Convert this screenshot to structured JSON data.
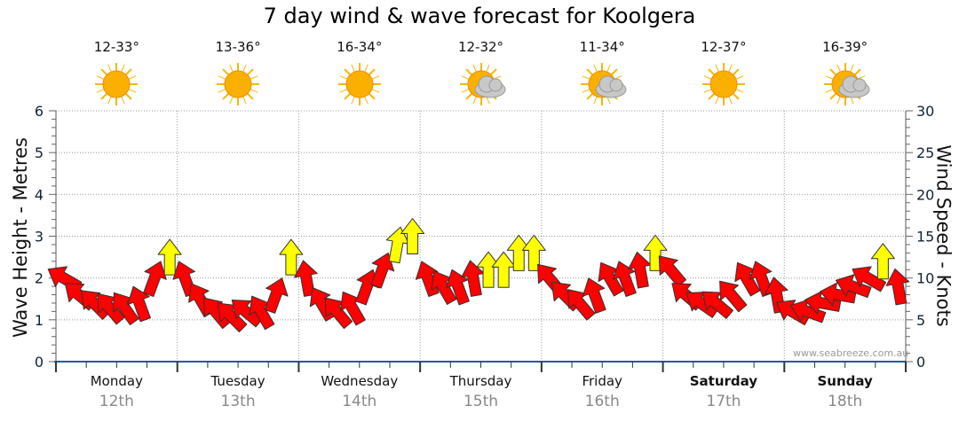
{
  "title": "7 day wind & wave forecast for Koolgera",
  "watermark": "www.seabreeze.com.au",
  "colors": {
    "strong": "#ffff00",
    "normal": "#ff0000",
    "axis": "#1f5f8f"
  },
  "days": [
    {
      "name": "Monday",
      "date": "12th",
      "temp": "12-33°",
      "icon": "sun-icon",
      "bold": false
    },
    {
      "name": "Tuesday",
      "date": "13th",
      "temp": "13-36°",
      "icon": "sun-icon",
      "bold": false
    },
    {
      "name": "Wednesday",
      "date": "14th",
      "temp": "16-34°",
      "icon": "sun-icon",
      "bold": false
    },
    {
      "name": "Thursday",
      "date": "15th",
      "temp": "12-32°",
      "icon": "partly-cloudy-icon",
      "bold": false
    },
    {
      "name": "Friday",
      "date": "16th",
      "temp": "11-34°",
      "icon": "partly-cloudy-icon",
      "bold": false
    },
    {
      "name": "Saturday",
      "date": "17th",
      "temp": "12-37°",
      "icon": "sun-icon",
      "bold": true
    },
    {
      "name": "Sunday",
      "date": "18th",
      "temp": "16-39°",
      "icon": "partly-cloudy-icon",
      "bold": true
    }
  ],
  "chart_data": {
    "type": "scatter",
    "title": "7 day wind & wave forecast for Koolgera",
    "ylabel": "Wave Height - Metres",
    "y2label": "Wind Speed - Knots",
    "ylim": [
      0,
      6
    ],
    "y2lim": [
      0,
      30
    ],
    "yticks": [
      "0",
      "1",
      "2",
      "3",
      "4",
      "5",
      "6"
    ],
    "y2ticks": [
      "0",
      "5",
      "10",
      "15",
      "20",
      "25",
      "30"
    ],
    "grid": true,
    "interval_hours": 3,
    "wind_knots": [
      10,
      8,
      7,
      6.5,
      6.5,
      7,
      10,
      12.5,
      10,
      7.5,
      6,
      5.5,
      6,
      6,
      8,
      12.5,
      10,
      7,
      6,
      6.5,
      9,
      11,
      14,
      15,
      10,
      9,
      9,
      10,
      11,
      11,
      13,
      13,
      10,
      8,
      7,
      8,
      10,
      10,
      11,
      13,
      11,
      8,
      7,
      7,
      8,
      10,
      10,
      8,
      6,
      6,
      7,
      8,
      9,
      10,
      12,
      9
    ],
    "wind_arrow_direction_deg": [
      -60,
      -50,
      -45,
      -40,
      -35,
      -20,
      20,
      0,
      -20,
      -30,
      -40,
      -45,
      -50,
      -30,
      20,
      0,
      -10,
      -30,
      -40,
      -30,
      20,
      20,
      10,
      0,
      -20,
      -30,
      -20,
      -10,
      0,
      0,
      0,
      0,
      -40,
      -45,
      -40,
      -20,
      -30,
      -20,
      -10,
      0,
      -40,
      -50,
      -55,
      -50,
      -40,
      -30,
      -20,
      -10,
      -60,
      -70,
      -80,
      -80,
      -70,
      -60,
      0,
      -10
    ],
    "wind_strong": [
      0,
      0,
      0,
      0,
      0,
      0,
      0,
      1,
      0,
      0,
      0,
      0,
      0,
      0,
      0,
      1,
      0,
      0,
      0,
      0,
      0,
      0,
      1,
      1,
      0,
      0,
      0,
      0,
      1,
      1,
      1,
      1,
      0,
      0,
      0,
      0,
      0,
      0,
      0,
      1,
      0,
      0,
      0,
      0,
      0,
      0,
      0,
      0,
      0,
      0,
      0,
      0,
      0,
      0,
      1,
      0
    ]
  }
}
